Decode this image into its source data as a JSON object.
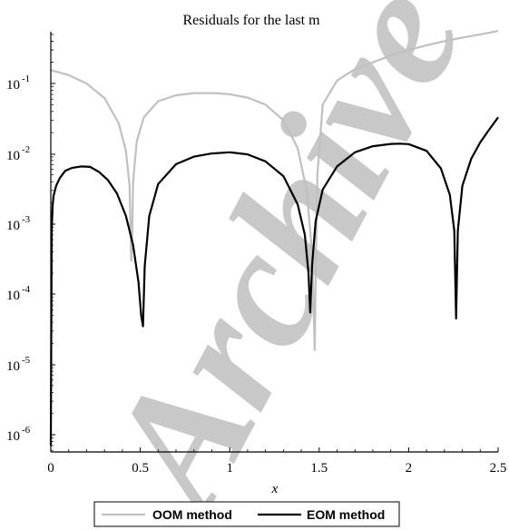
{
  "chart_data": {
    "type": "line",
    "title": "Residuals for the last m",
    "xlabel": "x",
    "ylabel": "",
    "xlim": [
      0,
      2.5
    ],
    "ylim": [
      5e-07,
      1
    ],
    "yscale": "log",
    "grid": false,
    "legend_position": "bottom",
    "x_ticks": [
      "0",
      "0.5",
      "1",
      "1.5",
      "2",
      "2.5"
    ],
    "y_ticks": [
      {
        "base": "10",
        "exp": "-1"
      },
      {
        "base": "10",
        "exp": "-2"
      },
      {
        "base": "10",
        "exp": "-3"
      },
      {
        "base": "10",
        "exp": "-4"
      },
      {
        "base": "10",
        "exp": "-5"
      },
      {
        "base": "10",
        "exp": "-6"
      }
    ],
    "watermark": "Archive",
    "series": [
      {
        "name": "OOM method",
        "color": "#c0c0c0",
        "x": [
          0,
          0.1,
          0.2,
          0.3,
          0.38,
          0.42,
          0.44,
          0.45,
          0.455,
          0.46,
          0.48,
          0.52,
          0.6,
          0.7,
          0.8,
          0.9,
          0.95,
          1.0,
          1.1,
          1.2,
          1.3,
          1.38,
          1.43,
          1.46,
          1.475,
          1.48,
          1.49,
          1.52,
          1.6,
          1.7,
          1.8,
          1.9,
          2.0,
          2.1,
          2.2,
          2.3,
          2.4,
          2.5
        ],
        "y": [
          0.155,
          0.132,
          0.1,
          0.062,
          0.027,
          0.011,
          0.0035,
          0.0003,
          0.0007,
          0.004,
          0.015,
          0.033,
          0.056,
          0.068,
          0.073,
          0.073,
          0.072,
          0.07,
          0.063,
          0.05,
          0.03,
          0.012,
          0.003,
          0.0004,
          1.6e-05,
          0.0002,
          0.005,
          0.05,
          0.11,
          0.16,
          0.2,
          0.25,
          0.3,
          0.35,
          0.4,
          0.45,
          0.5,
          0.56
        ]
      },
      {
        "name": "EOM method",
        "color": "#000000",
        "x": [
          0,
          0.005,
          0.01,
          0.015,
          0.03,
          0.05,
          0.08,
          0.12,
          0.17,
          0.22,
          0.27,
          0.32,
          0.37,
          0.42,
          0.46,
          0.49,
          0.505,
          0.515,
          0.525,
          0.55,
          0.6,
          0.7,
          0.8,
          0.9,
          1.0,
          1.1,
          1.2,
          1.3,
          1.38,
          1.42,
          1.44,
          1.45,
          1.46,
          1.48,
          1.52,
          1.6,
          1.7,
          1.8,
          1.9,
          1.95,
          2.0,
          2.1,
          2.18,
          2.23,
          2.255,
          2.265,
          2.275,
          2.3,
          2.35,
          2.4,
          2.45,
          2.5
        ],
        "y": [
          7e-07,
          0.0008,
          0.0018,
          0.0025,
          0.0035,
          0.0045,
          0.0057,
          0.0063,
          0.0066,
          0.0065,
          0.0055,
          0.0042,
          0.0027,
          0.0013,
          0.0005,
          0.00015,
          5e-05,
          3.5e-05,
          0.00025,
          0.0013,
          0.0037,
          0.0071,
          0.0091,
          0.0101,
          0.0105,
          0.0098,
          0.0078,
          0.0048,
          0.0019,
          0.0007,
          0.0002,
          5.5e-05,
          0.00025,
          0.0011,
          0.0031,
          0.0066,
          0.0105,
          0.0128,
          0.0138,
          0.0139,
          0.0137,
          0.011,
          0.0062,
          0.0026,
          0.0008,
          4.5e-05,
          0.0008,
          0.0035,
          0.0085,
          0.0145,
          0.022,
          0.033
        ]
      }
    ]
  }
}
